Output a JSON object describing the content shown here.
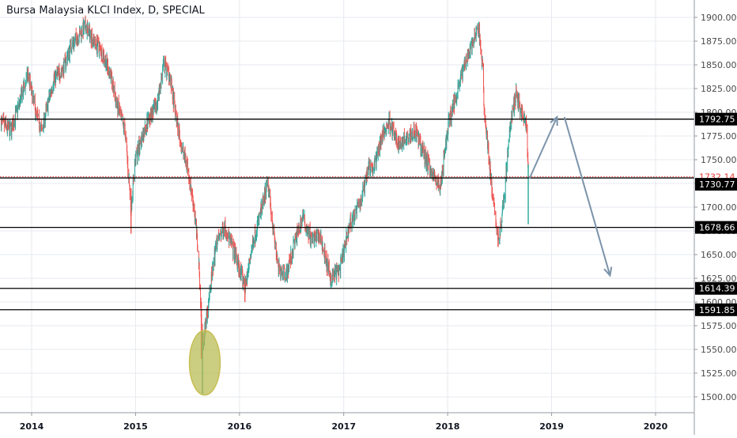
{
  "title": "Bursa Malaysia KLCI Index, D, SPECIAL",
  "colors": {
    "up": "#26a69a",
    "down": "#ef5350",
    "grid": "#e6e9ef",
    "axis_text": "#4a4a4a",
    "hline": "#000000",
    "last_price": "#e53935",
    "arrow": "#7b93aa",
    "ellipse_fill": "#b5b84a",
    "ellipse_stroke": "#c8bf53"
  },
  "chart_data": {
    "type": "candlestick",
    "title": "Bursa Malaysia KLCI Index, D, SPECIAL",
    "xlim": [
      "2013-09-10",
      "2020-08-01"
    ],
    "ylim": [
      1486,
      1916
    ],
    "x_ticks": [
      {
        "label": "2014",
        "date": "2014-01-01"
      },
      {
        "label": "2015",
        "date": "2015-01-01"
      },
      {
        "label": "2016",
        "date": "2016-01-01"
      },
      {
        "label": "2017",
        "date": "2017-01-01"
      },
      {
        "label": "2018",
        "date": "2018-01-01"
      },
      {
        "label": "2019",
        "date": "2019-01-01"
      },
      {
        "label": "2020",
        "date": "2020-01-01"
      }
    ],
    "y_ticks": [
      1500,
      1525,
      1550,
      1575,
      1600,
      1625,
      1650,
      1675,
      1700,
      1725,
      1750,
      1775,
      1800,
      1825,
      1850,
      1875,
      1900
    ],
    "y_tick_labels": [
      "1500.00",
      "1525.00",
      "1550.00",
      "1575.00",
      "1600.00",
      "1625.00",
      "1650.00",
      "1675.00",
      "1700.00",
      "1725.00",
      "1750.00",
      "1775.00",
      "1800.00",
      "1825.00",
      "1850.00",
      "1875.00",
      "1900.00"
    ],
    "price_path": [
      [
        "2013-09-15",
        1790
      ],
      [
        "2013-10-20",
        1780
      ],
      [
        "2013-12-20",
        1840
      ],
      [
        "2014-01-15",
        1800
      ],
      [
        "2014-02-05",
        1780
      ],
      [
        "2014-03-20",
        1835
      ],
      [
        "2014-04-20",
        1845
      ],
      [
        "2014-05-20",
        1870
      ],
      [
        "2014-06-25",
        1885
      ],
      [
        "2014-07-10",
        1890
      ],
      [
        "2014-08-10",
        1875
      ],
      [
        "2014-09-10",
        1860
      ],
      [
        "2014-10-05",
        1840
      ],
      [
        "2014-10-25",
        1810
      ],
      [
        "2014-11-25",
        1780
      ],
      [
        "2014-12-16",
        1700
      ],
      [
        "2014-12-31",
        1750
      ],
      [
        "2015-02-10",
        1790
      ],
      [
        "2015-03-15",
        1805
      ],
      [
        "2015-04-10",
        1850
      ],
      [
        "2015-04-30",
        1840
      ],
      [
        "2015-05-20",
        1800
      ],
      [
        "2015-06-10",
        1765
      ],
      [
        "2015-07-01",
        1745
      ],
      [
        "2015-07-25",
        1700
      ],
      [
        "2015-08-10",
        1650
      ],
      [
        "2015-08-24",
        1555
      ],
      [
        "2015-09-10",
        1590
      ],
      [
        "2015-10-10",
        1660
      ],
      [
        "2015-11-10",
        1680
      ],
      [
        "2015-12-10",
        1655
      ],
      [
        "2016-01-21",
        1615
      ],
      [
        "2016-02-15",
        1660
      ],
      [
        "2016-03-20",
        1700
      ],
      [
        "2016-04-10",
        1725
      ],
      [
        "2016-05-15",
        1635
      ],
      [
        "2016-06-15",
        1630
      ],
      [
        "2016-07-15",
        1665
      ],
      [
        "2016-08-10",
        1690
      ],
      [
        "2016-09-10",
        1665
      ],
      [
        "2016-10-10",
        1670
      ],
      [
        "2016-11-15",
        1625
      ],
      [
        "2016-12-20",
        1635
      ],
      [
        "2017-01-20",
        1680
      ],
      [
        "2017-03-01",
        1705
      ],
      [
        "2017-03-30",
        1745
      ],
      [
        "2017-04-15",
        1740
      ],
      [
        "2017-05-10",
        1770
      ],
      [
        "2017-06-10",
        1790
      ],
      [
        "2017-07-10",
        1765
      ],
      [
        "2017-08-10",
        1775
      ],
      [
        "2017-09-10",
        1780
      ],
      [
        "2017-10-10",
        1755
      ],
      [
        "2017-11-10",
        1735
      ],
      [
        "2017-12-05",
        1720
      ],
      [
        "2018-01-05",
        1790
      ],
      [
        "2018-02-10",
        1830
      ],
      [
        "2018-03-10",
        1860
      ],
      [
        "2018-04-10",
        1880
      ],
      [
        "2018-04-20",
        1890
      ],
      [
        "2018-05-05",
        1840
      ],
      [
        "2018-05-10",
        1800
      ],
      [
        "2018-05-20",
        1770
      ],
      [
        "2018-06-10",
        1705
      ],
      [
        "2018-06-28",
        1665
      ],
      [
        "2018-07-10",
        1685
      ],
      [
        "2018-08-10",
        1790
      ],
      [
        "2018-08-30",
        1820
      ],
      [
        "2018-09-20",
        1795
      ],
      [
        "2018-10-05",
        1785
      ],
      [
        "2018-10-11",
        1732
      ]
    ],
    "horizontal_lines": [
      {
        "value": 1792.75,
        "label": "1792.75"
      },
      {
        "value": 1730.77,
        "label": "1730.77"
      },
      {
        "value": 1678.66,
        "label": "1678.66"
      },
      {
        "value": 1614.39,
        "label": "1614.39"
      },
      {
        "value": 1591.85,
        "label": "1591.85"
      }
    ],
    "last_price": {
      "value": 1732.14,
      "label": "1732.14"
    },
    "annotations": [
      {
        "type": "arrow",
        "from": [
          "2018-10-15",
          1730
        ],
        "to": [
          "2019-01-20",
          1795
        ]
      },
      {
        "type": "arrow",
        "from": [
          "2019-02-15",
          1795
        ],
        "to": [
          "2019-07-25",
          1628
        ]
      },
      {
        "type": "ellipse",
        "center": [
          "2015-09-01",
          1536
        ],
        "radii_days": 54,
        "radii_value": 34
      }
    ]
  }
}
